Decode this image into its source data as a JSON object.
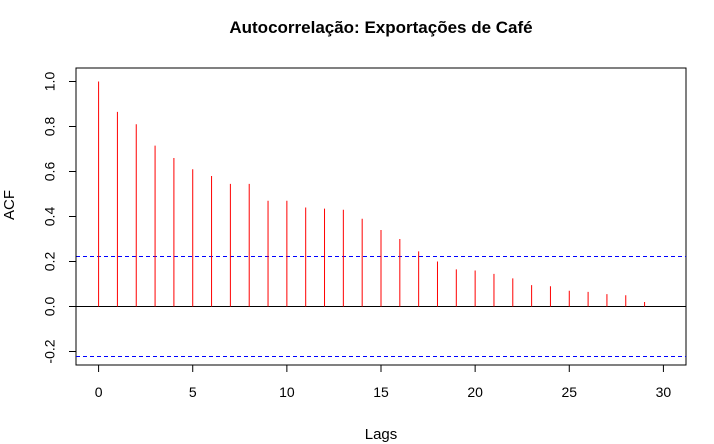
{
  "chart_data": {
    "type": "bar",
    "title": "Autocorrelação: Exportações de Café",
    "xlabel": "Lags",
    "ylabel": "ACF",
    "xlim": [
      -1.2,
      31.2
    ],
    "ylim": [
      -0.26,
      1.06
    ],
    "x_ticks": [
      "0",
      "5",
      "10",
      "15",
      "20",
      "25",
      "30"
    ],
    "y_ticks": [
      "-0.2",
      "0.0",
      "0.2",
      "0.4",
      "0.6",
      "0.8",
      "1.0"
    ],
    "lags": [
      0,
      1,
      2,
      3,
      4,
      5,
      6,
      7,
      8,
      9,
      10,
      11,
      12,
      13,
      14,
      15,
      16,
      17,
      18,
      19,
      20,
      21,
      22,
      23,
      24,
      25,
      26,
      27,
      28,
      29,
      30
    ],
    "values": [
      1.0,
      0.865,
      0.81,
      0.715,
      0.66,
      0.61,
      0.58,
      0.545,
      0.545,
      0.47,
      0.47,
      0.44,
      0.435,
      0.43,
      0.39,
      0.34,
      0.3,
      0.245,
      0.2,
      0.165,
      0.16,
      0.145,
      0.125,
      0.095,
      0.09,
      0.07,
      0.065,
      0.055,
      0.05,
      0.02,
      0.0
    ],
    "confidence_bounds": [
      0.222,
      -0.222
    ],
    "bar_color": "#ff0000",
    "confidence_color": "#0000ff",
    "zero_line_color": "#000000",
    "grid": false
  }
}
